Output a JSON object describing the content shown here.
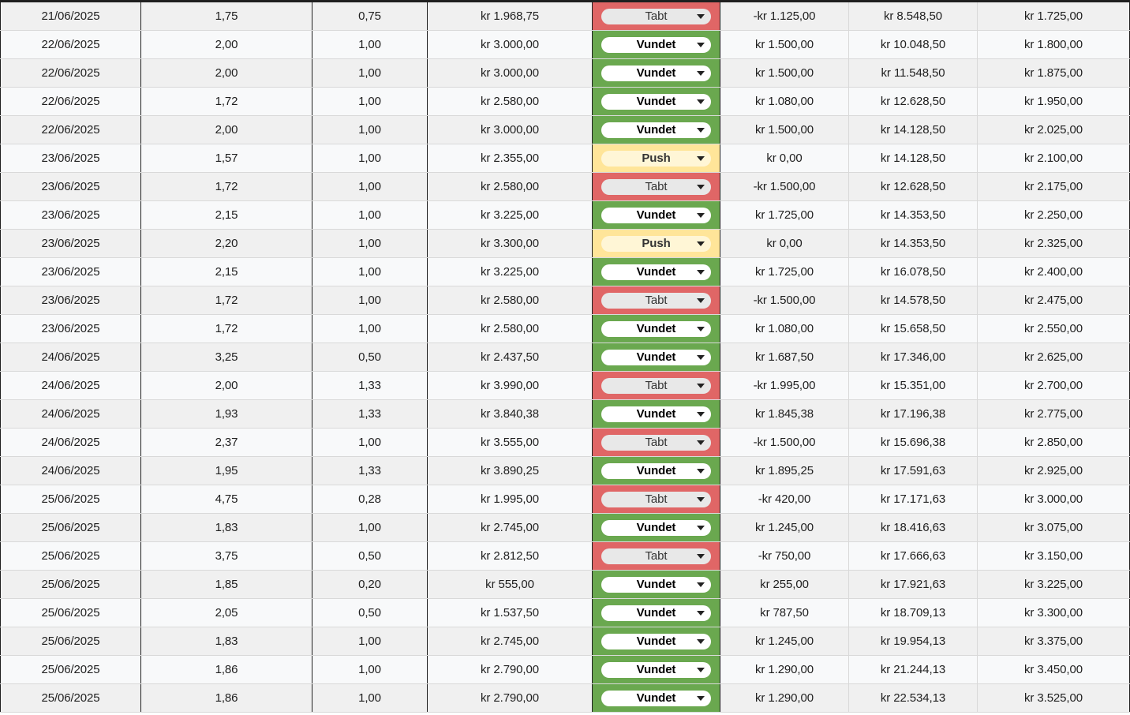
{
  "sheet": {
    "colors": {
      "win": "#6aa84f",
      "loss": "#e06666",
      "push": "#ffe599"
    },
    "rows": [
      {
        "date": "21/06/2025",
        "odds": "1,75",
        "stake": "0,75",
        "payout": "kr 1.968,75",
        "result": "Tabt",
        "status": "loss",
        "profit": "-kr 1.125,00",
        "balance": "kr 8.548,50",
        "target": "kr 1.725,00"
      },
      {
        "date": "22/06/2025",
        "odds": "2,00",
        "stake": "1,00",
        "payout": "kr 3.000,00",
        "result": "Vundet",
        "status": "win",
        "profit": "kr 1.500,00",
        "balance": "kr 10.048,50",
        "target": "kr 1.800,00"
      },
      {
        "date": "22/06/2025",
        "odds": "2,00",
        "stake": "1,00",
        "payout": "kr 3.000,00",
        "result": "Vundet",
        "status": "win",
        "profit": "kr 1.500,00",
        "balance": "kr 11.548,50",
        "target": "kr 1.875,00"
      },
      {
        "date": "22/06/2025",
        "odds": "1,72",
        "stake": "1,00",
        "payout": "kr 2.580,00",
        "result": "Vundet",
        "status": "win",
        "profit": "kr 1.080,00",
        "balance": "kr 12.628,50",
        "target": "kr 1.950,00"
      },
      {
        "date": "22/06/2025",
        "odds": "2,00",
        "stake": "1,00",
        "payout": "kr 3.000,00",
        "result": "Vundet",
        "status": "win",
        "profit": "kr 1.500,00",
        "balance": "kr 14.128,50",
        "target": "kr 2.025,00"
      },
      {
        "date": "23/06/2025",
        "odds": "1,57",
        "stake": "1,00",
        "payout": "kr 2.355,00",
        "result": "Push",
        "status": "push",
        "profit": "kr 0,00",
        "balance": "kr 14.128,50",
        "target": "kr 2.100,00"
      },
      {
        "date": "23/06/2025",
        "odds": "1,72",
        "stake": "1,00",
        "payout": "kr 2.580,00",
        "result": "Tabt",
        "status": "loss",
        "profit": "-kr 1.500,00",
        "balance": "kr 12.628,50",
        "target": "kr 2.175,00"
      },
      {
        "date": "23/06/2025",
        "odds": "2,15",
        "stake": "1,00",
        "payout": "kr 3.225,00",
        "result": "Vundet",
        "status": "win",
        "profit": "kr 1.725,00",
        "balance": "kr 14.353,50",
        "target": "kr 2.250,00"
      },
      {
        "date": "23/06/2025",
        "odds": "2,20",
        "stake": "1,00",
        "payout": "kr 3.300,00",
        "result": "Push",
        "status": "push",
        "profit": "kr 0,00",
        "balance": "kr 14.353,50",
        "target": "kr 2.325,00"
      },
      {
        "date": "23/06/2025",
        "odds": "2,15",
        "stake": "1,00",
        "payout": "kr 3.225,00",
        "result": "Vundet",
        "status": "win",
        "profit": "kr 1.725,00",
        "balance": "kr 16.078,50",
        "target": "kr 2.400,00"
      },
      {
        "date": "23/06/2025",
        "odds": "1,72",
        "stake": "1,00",
        "payout": "kr 2.580,00",
        "result": "Tabt",
        "status": "loss",
        "profit": "-kr 1.500,00",
        "balance": "kr 14.578,50",
        "target": "kr 2.475,00"
      },
      {
        "date": "23/06/2025",
        "odds": "1,72",
        "stake": "1,00",
        "payout": "kr 2.580,00",
        "result": "Vundet",
        "status": "win",
        "profit": "kr 1.080,00",
        "balance": "kr 15.658,50",
        "target": "kr 2.550,00"
      },
      {
        "date": "24/06/2025",
        "odds": "3,25",
        "stake": "0,50",
        "payout": "kr 2.437,50",
        "result": "Vundet",
        "status": "win",
        "profit": "kr 1.687,50",
        "balance": "kr 17.346,00",
        "target": "kr 2.625,00"
      },
      {
        "date": "24/06/2025",
        "odds": "2,00",
        "stake": "1,33",
        "payout": "kr 3.990,00",
        "result": "Tabt",
        "status": "loss",
        "profit": "-kr 1.995,00",
        "balance": "kr 15.351,00",
        "target": "kr 2.700,00"
      },
      {
        "date": "24/06/2025",
        "odds": "1,93",
        "stake": "1,33",
        "payout": "kr 3.840,38",
        "result": "Vundet",
        "status": "win",
        "profit": "kr 1.845,38",
        "balance": "kr 17.196,38",
        "target": "kr 2.775,00"
      },
      {
        "date": "24/06/2025",
        "odds": "2,37",
        "stake": "1,00",
        "payout": "kr 3.555,00",
        "result": "Tabt",
        "status": "loss",
        "profit": "-kr 1.500,00",
        "balance": "kr 15.696,38",
        "target": "kr 2.850,00"
      },
      {
        "date": "24/06/2025",
        "odds": "1,95",
        "stake": "1,33",
        "payout": "kr 3.890,25",
        "result": "Vundet",
        "status": "win",
        "profit": "kr 1.895,25",
        "balance": "kr 17.591,63",
        "target": "kr 2.925,00"
      },
      {
        "date": "25/06/2025",
        "odds": "4,75",
        "stake": "0,28",
        "payout": "kr 1.995,00",
        "result": "Tabt",
        "status": "loss",
        "profit": "-kr 420,00",
        "balance": "kr 17.171,63",
        "target": "kr 3.000,00"
      },
      {
        "date": "25/06/2025",
        "odds": "1,83",
        "stake": "1,00",
        "payout": "kr 2.745,00",
        "result": "Vundet",
        "status": "win",
        "profit": "kr 1.245,00",
        "balance": "kr 18.416,63",
        "target": "kr 3.075,00"
      },
      {
        "date": "25/06/2025",
        "odds": "3,75",
        "stake": "0,50",
        "payout": "kr 2.812,50",
        "result": "Tabt",
        "status": "loss",
        "profit": "-kr 750,00",
        "balance": "kr 17.666,63",
        "target": "kr 3.150,00"
      },
      {
        "date": "25/06/2025",
        "odds": "1,85",
        "stake": "0,20",
        "payout": "kr 555,00",
        "result": "Vundet",
        "status": "win",
        "profit": "kr 255,00",
        "balance": "kr 17.921,63",
        "target": "kr 3.225,00"
      },
      {
        "date": "25/06/2025",
        "odds": "2,05",
        "stake": "0,50",
        "payout": "kr 1.537,50",
        "result": "Vundet",
        "status": "win",
        "profit": "kr 787,50",
        "balance": "kr 18.709,13",
        "target": "kr 3.300,00"
      },
      {
        "date": "25/06/2025",
        "odds": "1,83",
        "stake": "1,00",
        "payout": "kr 2.745,00",
        "result": "Vundet",
        "status": "win",
        "profit": "kr 1.245,00",
        "balance": "kr 19.954,13",
        "target": "kr 3.375,00"
      },
      {
        "date": "25/06/2025",
        "odds": "1,86",
        "stake": "1,00",
        "payout": "kr 2.790,00",
        "result": "Vundet",
        "status": "win",
        "profit": "kr 1.290,00",
        "balance": "kr 21.244,13",
        "target": "kr 3.450,00"
      },
      {
        "date": "25/06/2025",
        "odds": "1,86",
        "stake": "1,00",
        "payout": "kr 2.790,00",
        "result": "Vundet",
        "status": "win",
        "profit": "kr 1.290,00",
        "balance": "kr 22.534,13",
        "target": "kr 3.525,00"
      }
    ]
  }
}
